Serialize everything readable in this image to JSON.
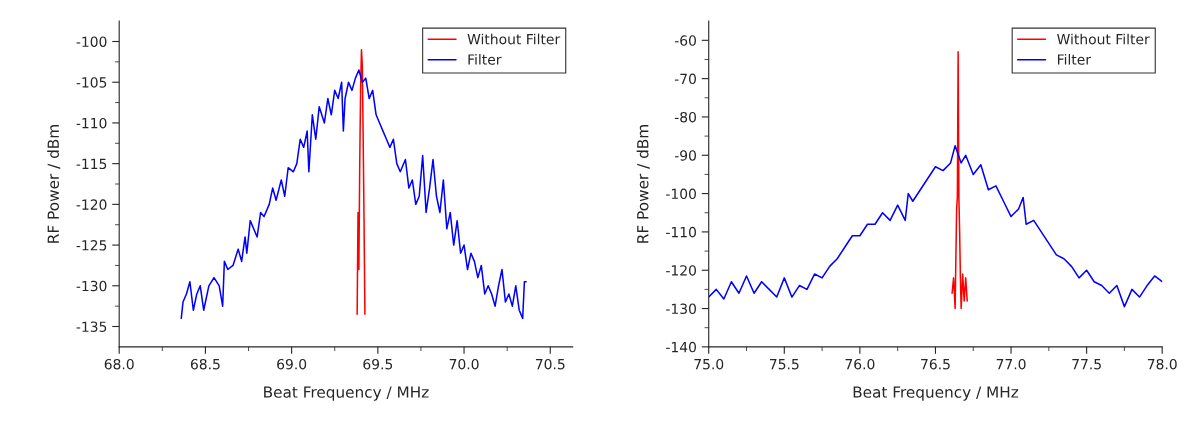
{
  "chart_data": [
    {
      "type": "line",
      "xlabel": "Beat Frequency / MHz",
      "ylabel": "RF Power / dBm",
      "xlim": [
        68.0,
        70.63
      ],
      "ylim": [
        -137.5,
        -97.5
      ],
      "xticks": [
        {
          "value": 68.0,
          "label": "68.0"
        },
        68.5,
        {
          "value": 69.0,
          "label": "69.0"
        },
        69.5,
        {
          "value": 70.0,
          "label": "70.0"
        },
        70.5
      ],
      "yticks": [
        -135,
        -130,
        -125,
        -120,
        -115,
        -110,
        -105,
        -100
      ],
      "grid": false,
      "legend": "top right",
      "marker": "none",
      "line_style": "solid",
      "series": [
        {
          "name": "Without Filter",
          "color": "#ff0000",
          "x": [
            69.38,
            69.385,
            69.39,
            69.395,
            69.4,
            69.405,
            69.41,
            69.415,
            69.42,
            69.425
          ],
          "values": [
            -133.5,
            -121,
            -128,
            -115,
            -106,
            -101,
            -103,
            -112,
            -122,
            -133.5
          ]
        },
        {
          "name": "Filter",
          "color": "#0000ff",
          "x": [
            68.36,
            68.37,
            68.39,
            68.41,
            68.43,
            68.45,
            68.47,
            68.49,
            68.52,
            68.55,
            68.58,
            68.6,
            68.61,
            68.63,
            68.66,
            68.69,
            68.71,
            68.73,
            68.74,
            68.76,
            68.78,
            68.8,
            68.82,
            68.84,
            68.87,
            68.89,
            68.91,
            68.94,
            68.96,
            68.98,
            69.01,
            69.03,
            69.05,
            69.07,
            69.09,
            69.1,
            69.12,
            69.14,
            69.16,
            69.19,
            69.21,
            69.23,
            69.25,
            69.27,
            69.29,
            69.3,
            69.31,
            69.33,
            69.35,
            69.37,
            69.39,
            69.41,
            69.43,
            69.45,
            69.47,
            69.49,
            69.51,
            69.53,
            69.55,
            69.57,
            69.59,
            69.61,
            69.63,
            69.66,
            69.68,
            69.7,
            69.72,
            69.74,
            69.76,
            69.78,
            69.8,
            69.82,
            69.84,
            69.86,
            69.88,
            69.9,
            69.92,
            69.94,
            69.96,
            69.98,
            70.0,
            70.02,
            70.04,
            70.06,
            70.08,
            70.1,
            70.12,
            70.14,
            70.16,
            70.18,
            70.2,
            70.22,
            70.24,
            70.26,
            70.28,
            70.3,
            70.32,
            70.34,
            70.35,
            70.36
          ],
          "values": [
            -134,
            -132,
            -131,
            -129.5,
            -133,
            -131,
            -130,
            -133,
            -130,
            -129,
            -130,
            -132.5,
            -127,
            -128,
            -127.5,
            -125.5,
            -127,
            -124,
            -126,
            -122,
            -123,
            -124,
            -121,
            -121.5,
            -120,
            -118,
            -119.5,
            -117,
            -119,
            -115.5,
            -116,
            -115,
            -112,
            -113,
            -111,
            -116,
            -109,
            -112,
            -108,
            -110,
            -107,
            -109,
            -106,
            -107,
            -105,
            -111,
            -107,
            -105,
            -106,
            -104.5,
            -103.5,
            -105,
            -104.5,
            -107,
            -106,
            -109,
            -110,
            -111,
            -112,
            -113,
            -112,
            -115,
            -116,
            -114.5,
            -118,
            -117,
            -120,
            -119,
            -114,
            -121,
            -118,
            -114.5,
            -119,
            -121,
            -117,
            -123,
            -121,
            -125,
            -122,
            -126,
            -125,
            -128,
            -126,
            -127,
            -129,
            -127.5,
            -131,
            -130,
            -131,
            -132.5,
            -130,
            -128,
            -132,
            -131,
            -132.5,
            -130,
            -133,
            -134,
            -129.5,
            -129.5
          ]
        }
      ]
    },
    {
      "type": "line",
      "xlabel": "Beat Frequency / MHz",
      "ylabel": "RF Power / dBm",
      "xlim": [
        75.0,
        78.0
      ],
      "ylim": [
        -140,
        -55
      ],
      "xticks": [
        {
          "value": 75.0,
          "label": "75.0"
        },
        75.5,
        {
          "value": 76.0,
          "label": "76.0"
        },
        76.5,
        {
          "value": 77.0,
          "label": "77.0"
        },
        77.5,
        {
          "value": 78.0,
          "label": "78.0"
        }
      ],
      "yticks": [
        -140,
        -130,
        -120,
        -110,
        -100,
        -90,
        -80,
        -70,
        -60
      ],
      "grid": false,
      "legend": "top right",
      "marker": "none",
      "line_style": "solid",
      "series": [
        {
          "name": "Without Filter",
          "color": "#ff0000",
          "x": [
            76.61,
            76.62,
            76.63,
            76.64,
            76.645,
            76.65,
            76.655,
            76.66,
            76.665,
            76.67,
            76.68,
            76.69,
            76.7,
            76.71
          ],
          "values": [
            -126,
            -122,
            -130,
            -104,
            -101,
            -63,
            -101,
            -110,
            -122,
            -130,
            -121,
            -128,
            -122,
            -128
          ]
        },
        {
          "name": "Filter",
          "color": "#0000ff",
          "x": [
            75.0,
            75.05,
            75.1,
            75.15,
            75.2,
            75.25,
            75.3,
            75.35,
            75.4,
            75.45,
            75.5,
            75.55,
            75.6,
            75.65,
            75.7,
            75.75,
            75.8,
            75.85,
            75.9,
            75.95,
            76.0,
            76.05,
            76.1,
            76.15,
            76.2,
            76.25,
            76.3,
            76.32,
            76.35,
            76.4,
            76.45,
            76.5,
            76.55,
            76.6,
            76.63,
            76.67,
            76.7,
            76.75,
            76.8,
            76.85,
            76.9,
            76.95,
            77.0,
            77.05,
            77.08,
            77.1,
            77.15,
            77.2,
            77.25,
            77.3,
            77.35,
            77.4,
            77.45,
            77.5,
            77.55,
            77.6,
            77.65,
            77.7,
            77.75,
            77.8,
            77.85,
            77.9,
            77.95,
            78.0
          ],
          "values": [
            -127,
            -125,
            -127.5,
            -123,
            -126,
            -121.5,
            -126,
            -123,
            -125,
            -127,
            -122,
            -127,
            -124,
            -125,
            -121,
            -122,
            -119,
            -117,
            -114,
            -111,
            -111,
            -108,
            -108,
            -105,
            -107,
            -103,
            -107,
            -100,
            -102,
            -99,
            -96,
            -93,
            -94,
            -92,
            -87.5,
            -92,
            -90,
            -95,
            -92.5,
            -99,
            -98,
            -102,
            -106,
            -104,
            -101,
            -108,
            -107,
            -110,
            -113,
            -116,
            -117,
            -119,
            -122,
            -120,
            -123,
            -124,
            -126,
            -124,
            -129.5,
            -125,
            -127,
            -124,
            -121.5,
            -123
          ]
        }
      ]
    }
  ]
}
